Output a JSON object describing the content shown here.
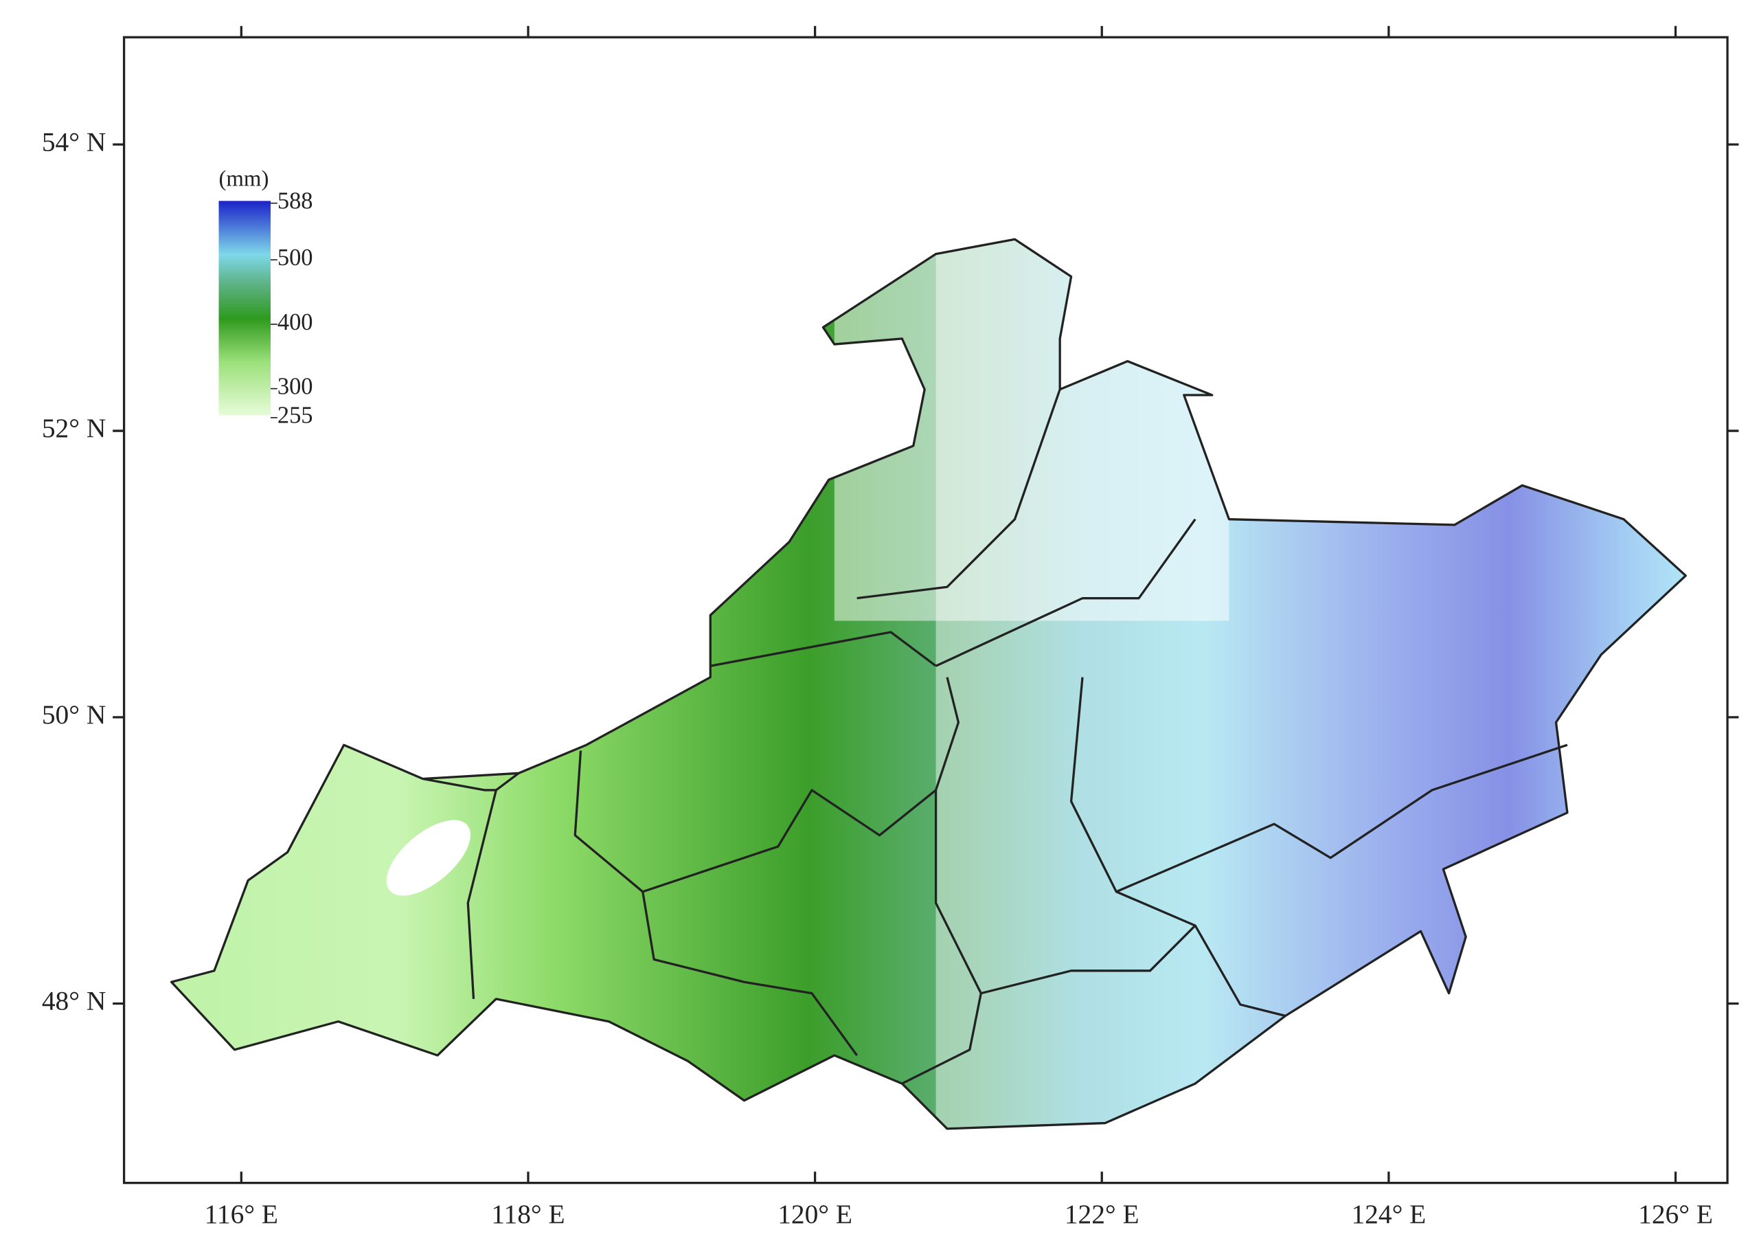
{
  "map": {
    "x_ticks": [
      "116° E",
      "118° E",
      "120° E",
      "122° E",
      "124° E",
      "126° E"
    ],
    "y_ticks": [
      "54° N",
      "52° N",
      "50° N",
      "48° N"
    ],
    "legend": {
      "unit": "(mm)",
      "ticks": [
        588,
        500,
        400,
        300,
        255
      ]
    }
  }
}
